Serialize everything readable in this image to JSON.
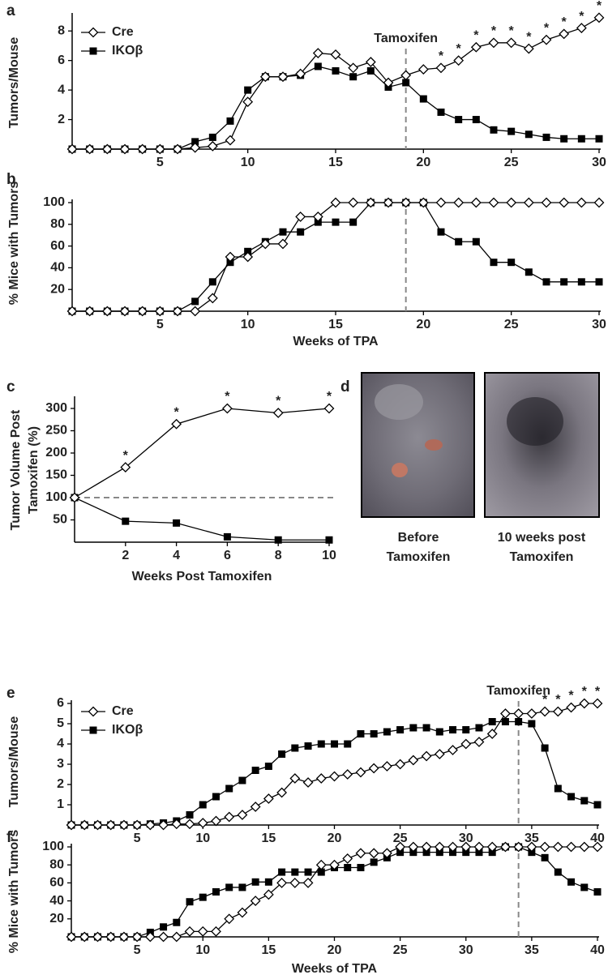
{
  "chart_data": [
    {
      "type": "line",
      "label": "a",
      "ylabel": [
        "Tumors/Mouse"
      ],
      "annotation": "Tamoxifen",
      "vline": 19,
      "legend": true,
      "x": [
        0,
        1,
        2,
        3,
        4,
        5,
        6,
        7,
        8,
        9,
        10,
        11,
        12,
        13,
        14,
        15,
        16,
        17,
        18,
        19,
        20,
        21,
        22,
        23,
        24,
        25,
        26,
        27,
        28,
        29,
        30
      ],
      "series": [
        {
          "name": "Cre",
          "marker": "diamond",
          "color": "#000000",
          "values": [
            0,
            0,
            0,
            0,
            0,
            0,
            0,
            0.1,
            0.2,
            0.6,
            3.2,
            4.9,
            4.9,
            5.1,
            6.5,
            6.4,
            5.5,
            5.9,
            4.5,
            5.0,
            5.4,
            5.5,
            6.0,
            6.9,
            7.2,
            7.2,
            6.8,
            7.4,
            7.8,
            8.2,
            8.9
          ]
        },
        {
          "name": "IKOβ",
          "marker": "square",
          "color": "#000000",
          "values": [
            0,
            0,
            0,
            0,
            0,
            0,
            0,
            0.5,
            0.8,
            1.9,
            4.0,
            4.9,
            4.9,
            5.0,
            5.6,
            5.3,
            4.9,
            5.3,
            4.2,
            4.5,
            3.4,
            2.5,
            2.0,
            2.0,
            1.3,
            1.2,
            1.0,
            0.8,
            0.7,
            0.7,
            0.7
          ]
        }
      ],
      "significance": {
        "label": "*",
        "x": [
          21,
          22,
          23,
          24,
          25,
          26,
          27,
          28,
          29,
          30
        ]
      },
      "xlim": [
        0,
        30
      ],
      "xticks": [
        5,
        10,
        15,
        20,
        25,
        30
      ],
      "ylim": [
        0,
        9
      ],
      "yticks": [
        2,
        4,
        6,
        8
      ]
    },
    {
      "type": "line",
      "label": "b",
      "ylabel": [
        "% Mice with Tumors"
      ],
      "xlabel": "Weeks of TPA",
      "vline": 19,
      "x": [
        0,
        1,
        2,
        3,
        4,
        5,
        6,
        7,
        8,
        9,
        10,
        11,
        12,
        13,
        14,
        15,
        16,
        17,
        18,
        19,
        20,
        21,
        22,
        23,
        24,
        25,
        26,
        27,
        28,
        29,
        30
      ],
      "series": [
        {
          "marker": "diamond",
          "color": "#000000",
          "values": [
            0,
            0,
            0,
            0,
            0,
            0,
            0,
            0,
            12,
            50,
            50,
            62,
            62,
            87,
            87,
            100,
            100,
            100,
            100,
            100,
            100,
            100,
            100,
            100,
            100,
            100,
            100,
            100,
            100,
            100,
            100
          ]
        },
        {
          "marker": "square",
          "color": "#000000",
          "values": [
            0,
            0,
            0,
            0,
            0,
            0,
            0,
            9,
            27,
            45,
            55,
            64,
            73,
            73,
            82,
            82,
            82,
            100,
            100,
            100,
            100,
            73,
            64,
            64,
            45,
            45,
            36,
            27,
            27,
            27,
            27
          ]
        }
      ],
      "xlim": [
        0,
        30
      ],
      "xticks": [
        5,
        10,
        15,
        20,
        25,
        30
      ],
      "ylim": [
        0,
        100
      ],
      "yticks": [
        20,
        40,
        60,
        80,
        100
      ]
    },
    {
      "type": "line",
      "label": "c",
      "ylabel": [
        "Tumor Volume Post",
        "Tamoxifen (%)"
      ],
      "xlabel": "Weeks Post Tamoxifen",
      "hline": 100,
      "x": [
        0,
        2,
        4,
        6,
        8,
        10
      ],
      "series": [
        {
          "marker": "diamond",
          "color": "#000000",
          "values": [
            100,
            168,
            265,
            300,
            290,
            300
          ]
        },
        {
          "marker": "square",
          "color": "#000000",
          "values": [
            100,
            47,
            43,
            12,
            5,
            5
          ]
        }
      ],
      "significance": {
        "label": "*",
        "x": [
          2,
          4,
          6,
          8,
          10
        ]
      },
      "xlim": [
        0,
        10
      ],
      "xticks": [
        2,
        4,
        6,
        8,
        10
      ],
      "ylim": [
        0,
        320
      ],
      "yticks": [
        50,
        100,
        150,
        200,
        250,
        300
      ]
    },
    {
      "type": "line",
      "label": "e",
      "ylabel": [
        "Tumors/Mouse"
      ],
      "annotation": "Tamoxifen",
      "vline": 34,
      "legend": true,
      "x": [
        0,
        1,
        2,
        3,
        4,
        5,
        6,
        7,
        8,
        9,
        10,
        11,
        12,
        13,
        14,
        15,
        16,
        17,
        18,
        19,
        20,
        21,
        22,
        23,
        24,
        25,
        26,
        27,
        28,
        29,
        30,
        31,
        32,
        33,
        34,
        35,
        36,
        37,
        38,
        39,
        40
      ],
      "series": [
        {
          "name": "Cre",
          "marker": "diamond",
          "color": "#000000",
          "values": [
            0,
            0,
            0,
            0,
            0,
            0,
            0,
            0,
            0.05,
            0.05,
            0.1,
            0.2,
            0.4,
            0.5,
            0.9,
            1.3,
            1.6,
            2.3,
            2.1,
            2.3,
            2.4,
            2.5,
            2.6,
            2.8,
            2.9,
            3.0,
            3.2,
            3.4,
            3.5,
            3.7,
            4.0,
            4.1,
            4.5,
            5.5,
            5.5,
            5.5,
            5.6,
            5.6,
            5.8,
            6.0,
            6.0
          ]
        },
        {
          "name": "IKOβ",
          "marker": "square",
          "color": "#000000",
          "values": [
            0,
            0,
            0,
            0,
            0,
            0,
            0.05,
            0.1,
            0.2,
            0.5,
            1.0,
            1.4,
            1.8,
            2.2,
            2.7,
            2.9,
            3.5,
            3.8,
            3.9,
            4.0,
            4.0,
            4.0,
            4.5,
            4.5,
            4.6,
            4.7,
            4.8,
            4.8,
            4.6,
            4.7,
            4.7,
            4.8,
            5.1,
            5.1,
            5.1,
            5.0,
            3.8,
            1.8,
            1.4,
            1.2,
            1.0
          ]
        }
      ],
      "significance": {
        "label": "*",
        "x": [
          36,
          37,
          38,
          39,
          40
        ]
      },
      "xlim": [
        0,
        40
      ],
      "xticks": [
        5,
        10,
        15,
        20,
        25,
        30,
        35,
        40
      ],
      "ylim": [
        0,
        6
      ],
      "yticks": [
        1,
        2,
        3,
        4,
        5,
        6
      ]
    },
    {
      "type": "line",
      "label": "f",
      "ylabel": [
        "% Mice with Tumors"
      ],
      "xlabel": "Weeks of TPA",
      "vline": 34,
      "x": [
        0,
        1,
        2,
        3,
        4,
        5,
        6,
        7,
        8,
        9,
        10,
        11,
        12,
        13,
        14,
        15,
        16,
        17,
        18,
        19,
        20,
        21,
        22,
        23,
        24,
        25,
        26,
        27,
        28,
        29,
        30,
        31,
        32,
        33,
        34,
        35,
        36,
        37,
        38,
        39,
        40
      ],
      "series": [
        {
          "marker": "diamond",
          "color": "#000000",
          "values": [
            0,
            0,
            0,
            0,
            0,
            0,
            0,
            0,
            0,
            6,
            6,
            6,
            20,
            27,
            40,
            47,
            60,
            60,
            60,
            80,
            80,
            87,
            93,
            93,
            93,
            100,
            100,
            100,
            100,
            100,
            100,
            100,
            100,
            100,
            100,
            100,
            100,
            100,
            100,
            100,
            100
          ]
        },
        {
          "marker": "square",
          "color": "#000000",
          "values": [
            0,
            0,
            0,
            0,
            0,
            0,
            5,
            11,
            16,
            39,
            44,
            50,
            55,
            55,
            61,
            61,
            72,
            72,
            72,
            72,
            77,
            77,
            77,
            83,
            88,
            94,
            94,
            94,
            94,
            94,
            94,
            94,
            94,
            100,
            100,
            94,
            88,
            72,
            61,
            55,
            50
          ]
        }
      ],
      "xlim": [
        0,
        40
      ],
      "xticks": [
        5,
        10,
        15,
        20,
        25,
        30,
        35,
        40
      ],
      "ylim": [
        0,
        100
      ],
      "yticks": [
        20,
        40,
        60,
        80,
        100
      ]
    }
  ],
  "panel_d": {
    "label": "d",
    "captions": [
      [
        "Before",
        "Tamoxifen"
      ],
      [
        "10 weeks post",
        "Tamoxifen"
      ]
    ]
  }
}
